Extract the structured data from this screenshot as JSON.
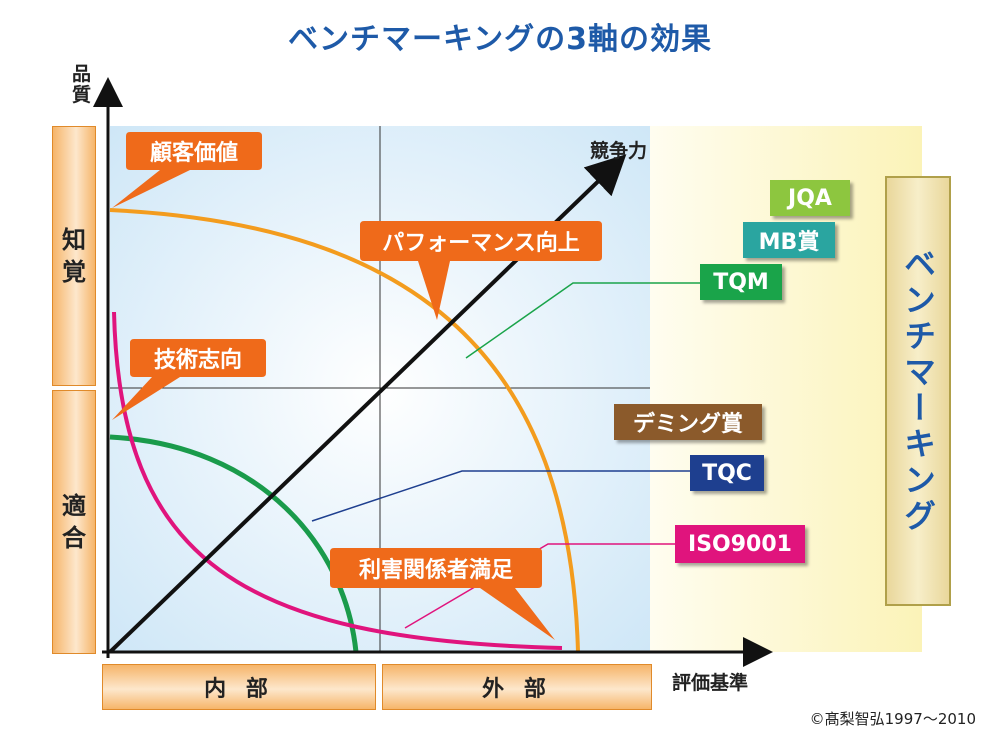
{
  "title": "ベンチマーキングの3軸の効果",
  "axes": {
    "y_label": "品\n質",
    "x_label": "評価基準",
    "diagonal_label": "競争力"
  },
  "y_categories": [
    "知\n覚",
    "適\n合"
  ],
  "x_categories": [
    "内 部",
    "外 部"
  ],
  "callouts": {
    "customer_value": "顧客価値",
    "tech_oriented": "技術志向",
    "performance": "パフォーマンス向上",
    "stakeholder": "利害関係者満足"
  },
  "standards": [
    {
      "label": "JQA",
      "color": "#8dc63f"
    },
    {
      "label": "MB賞",
      "color": "#2aa5a0"
    },
    {
      "label": "TQM",
      "color": "#1aa44a"
    },
    {
      "label": "デミング賞",
      "color": "#8b5a2b"
    },
    {
      "label": "TQC",
      "color": "#1e3f8f"
    },
    {
      "label": "ISO9001",
      "color": "#e0147d"
    }
  ],
  "benchmarking_label": "ベンチマーキング",
  "copyright": "©髙梨智弘1997〜2010",
  "colors": {
    "customer_value_curve": "#f39c1e",
    "tech_curve": "#e0147d",
    "conformance_curve": "#1a9b4b",
    "callout": "#ef6a1a",
    "title": "#1e5aa8"
  }
}
